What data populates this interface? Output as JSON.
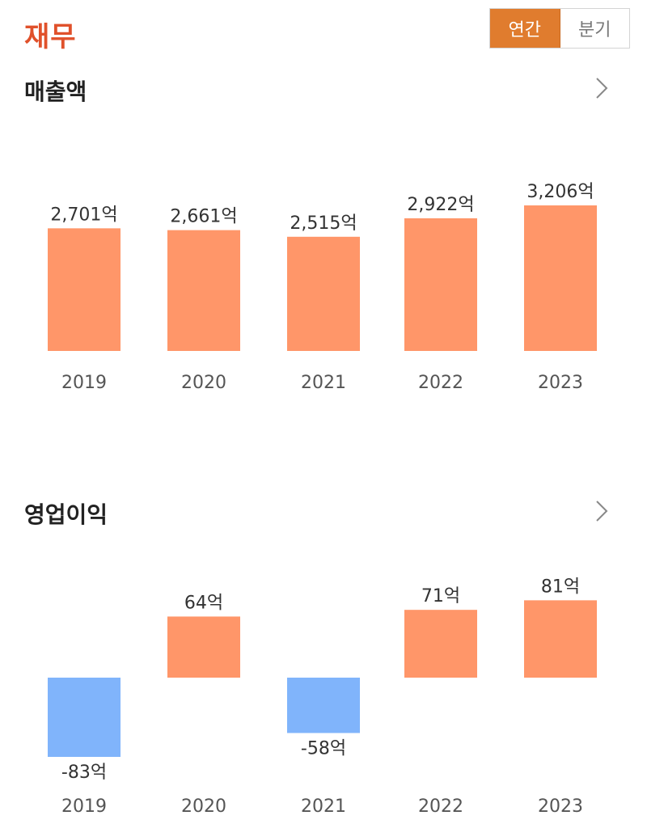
{
  "header": {
    "title": "재무",
    "toggle": {
      "annual_label": "연간",
      "quarterly_label": "분기",
      "selected": "연간"
    }
  },
  "colors": {
    "positive": "#ff9669",
    "negative": "#80b4fb",
    "accent": "#e0512b",
    "toggle_active": "#e07c2e"
  },
  "icons": {
    "section_link": "chevron-right-icon"
  },
  "chart_data": [
    {
      "type": "bar",
      "title": "매출액",
      "unit": "억",
      "categories": [
        "2019",
        "2020",
        "2021",
        "2022",
        "2023"
      ],
      "values": [
        2701,
        2661,
        2515,
        2922,
        3206
      ],
      "value_labels": [
        "2,701억",
        "2,661억",
        "2,515억",
        "2,922억",
        "3,206억"
      ],
      "grid": false
    },
    {
      "type": "bar",
      "title": "영업이익",
      "unit": "억",
      "categories": [
        "2019",
        "2020",
        "2021",
        "2022",
        "2023"
      ],
      "values": [
        -83,
        64,
        -58,
        71,
        81
      ],
      "value_labels": [
        "-83억",
        "64억",
        "-58억",
        "71억",
        "81억"
      ],
      "grid": false
    }
  ]
}
